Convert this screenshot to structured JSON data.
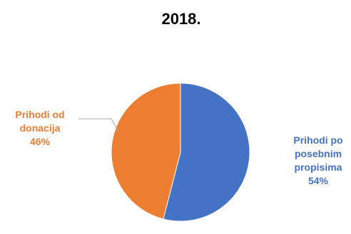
{
  "chart_data": {
    "type": "pie",
    "title": "2018.",
    "slices": [
      {
        "label": [
          "Prihodi po",
          "posebnim",
          "propisima"
        ],
        "percent_label": "54%",
        "value": 54,
        "color": "#4472C4"
      },
      {
        "label": [
          "Prihodi od",
          "donacija"
        ],
        "percent_label": "46%",
        "value": 46,
        "color": "#ED7D31"
      }
    ],
    "legend": "none",
    "start_angle": "12 o'clock",
    "direction": "clockwise"
  }
}
